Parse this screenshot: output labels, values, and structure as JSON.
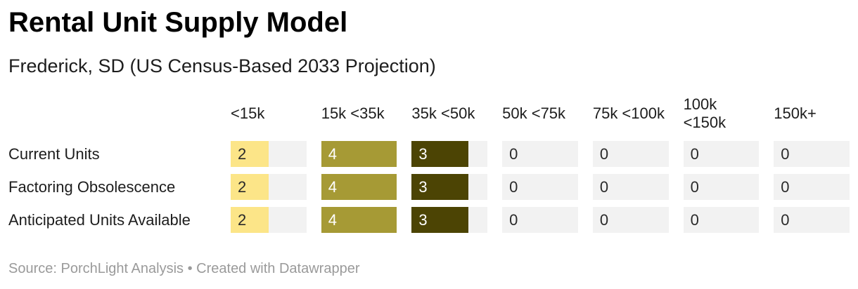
{
  "header": {
    "title": "Rental Unit Supply Model",
    "subtitle": "Frederick, SD (US Census-Based 2033 Projection)"
  },
  "footer": {
    "source": "Source: PorchLight Analysis",
    "separator": " • ",
    "attribution": "Created with Datawrapper"
  },
  "colors": {
    "cell_bg": "#f2f2f2",
    "cell_text": "#2a2a2a",
    "accent_scale": [
      "#fce588",
      "#a69a35",
      "#4c4404"
    ]
  },
  "chart_data": {
    "type": "heatmap",
    "title": "Rental Unit Supply Model",
    "subtitle": "Frederick, SD (US Census-Based 2033 Projection)",
    "columns": [
      "<15k",
      "15k <35k",
      "35k <50k",
      "50k <75k",
      "75k <100k",
      "100k <150k",
      "150k+"
    ],
    "rows": [
      {
        "label": "Current Units",
        "values": [
          2,
          4,
          3,
          0,
          0,
          0,
          0
        ]
      },
      {
        "label": "Factoring Obsolescence",
        "values": [
          2,
          4,
          3,
          0,
          0,
          0,
          0
        ]
      },
      {
        "label": "Anticipated Units Available",
        "values": [
          2,
          4,
          3,
          0,
          0,
          0,
          0
        ]
      }
    ],
    "max_value": 4,
    "bar_width_rule": "fill width = value / max_value",
    "value_colors": {
      "2": "#fce588",
      "3": "#4c4404",
      "4": "#a69a35"
    },
    "value_text_colors": {
      "2": "#2a2a2a",
      "3": "#ffffff",
      "4": "#ffffff"
    },
    "legend": "none",
    "grid": "off"
  }
}
